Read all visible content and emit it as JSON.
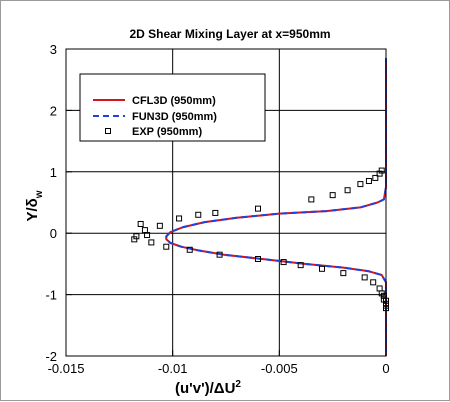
{
  "chart_data": {
    "type": "line",
    "title": "2D Shear Mixing Layer at x=950mm",
    "xlabel": "(u'v')/ΔU",
    "xlabel_sup": "2",
    "ylabel": "Y/δ",
    "ylabel_sub": "w",
    "xlim": [
      -0.015,
      0.0
    ],
    "ylim": [
      -2,
      3
    ],
    "xticks": [
      -0.015,
      -0.01,
      -0.005,
      0
    ],
    "xtick_labels": [
      "-0.015",
      "-0.01",
      "-0.005",
      "0"
    ],
    "yticks": [
      -2,
      -1,
      0,
      1,
      2,
      3
    ],
    "ytick_labels": [
      "-2",
      "-1",
      "0",
      "1",
      "2",
      "3"
    ],
    "grid": true,
    "legend_position": "top-left",
    "series": [
      {
        "name": "CFL3D (950mm)",
        "style": "solid",
        "color": "#d4141e",
        "x": [
          0,
          0,
          -0.0001,
          -0.0004,
          -0.0012,
          -0.0028,
          -0.005,
          -0.007,
          -0.0085,
          -0.0095,
          -0.0101,
          -0.0103,
          -0.0103,
          -0.0101,
          -0.0096,
          -0.0088,
          -0.0076,
          -0.0058,
          -0.0038,
          -0.002,
          -0.0008,
          -0.0002,
          0,
          0
        ],
        "y": [
          2.85,
          0.75,
          0.55,
          0.5,
          0.42,
          0.36,
          0.32,
          0.25,
          0.18,
          0.1,
          0.02,
          -0.05,
          -0.1,
          -0.16,
          -0.22,
          -0.28,
          -0.35,
          -0.42,
          -0.5,
          -0.56,
          -0.62,
          -0.68,
          -0.8,
          -2.0
        ]
      },
      {
        "name": "FUN3D (950mm)",
        "style": "dashed",
        "color": "#2040e0",
        "x": [
          0,
          0,
          -0.0001,
          -0.0004,
          -0.0012,
          -0.0028,
          -0.005,
          -0.007,
          -0.0085,
          -0.0095,
          -0.0101,
          -0.0103,
          -0.0103,
          -0.0101,
          -0.0096,
          -0.0088,
          -0.0076,
          -0.0058,
          -0.0038,
          -0.002,
          -0.0008,
          -0.0002,
          0,
          0
        ],
        "y": [
          2.85,
          0.75,
          0.55,
          0.5,
          0.42,
          0.36,
          0.32,
          0.25,
          0.18,
          0.1,
          0.02,
          -0.05,
          -0.1,
          -0.16,
          -0.22,
          -0.28,
          -0.35,
          -0.42,
          -0.5,
          -0.56,
          -0.62,
          -0.68,
          -0.8,
          -2.0
        ]
      },
      {
        "name": "EXP (950mm)",
        "style": "markers",
        "marker": "square",
        "color": "#000000",
        "x": [
          -0.0002,
          -0.0003,
          -0.0005,
          -0.0008,
          -0.0012,
          -0.0018,
          -0.0025,
          -0.0035,
          -0.006,
          -0.008,
          -0.0088,
          -0.0097,
          -0.0106,
          -0.0115,
          -0.0113,
          -0.0112,
          -0.0117,
          -0.0118,
          -0.011,
          -0.0103,
          -0.0092,
          -0.0078,
          -0.006,
          -0.0048,
          -0.004,
          -0.003,
          -0.002,
          -0.001,
          -0.0006,
          -0.0003,
          -0.0002,
          -0.0001,
          -0.0001,
          0,
          0,
          0,
          0
        ],
        "y": [
          1.02,
          0.97,
          0.9,
          0.85,
          0.8,
          0.7,
          0.62,
          0.55,
          0.4,
          0.33,
          0.3,
          0.24,
          0.12,
          0.15,
          0.05,
          -0.03,
          -0.05,
          -0.1,
          -0.15,
          -0.22,
          -0.27,
          -0.35,
          -0.42,
          -0.47,
          -0.52,
          -0.58,
          -0.65,
          -0.72,
          -0.8,
          -0.9,
          -0.98,
          -1.02,
          -1.08,
          -1.1,
          -1.15,
          -1.18,
          -1.22
        ]
      }
    ]
  }
}
